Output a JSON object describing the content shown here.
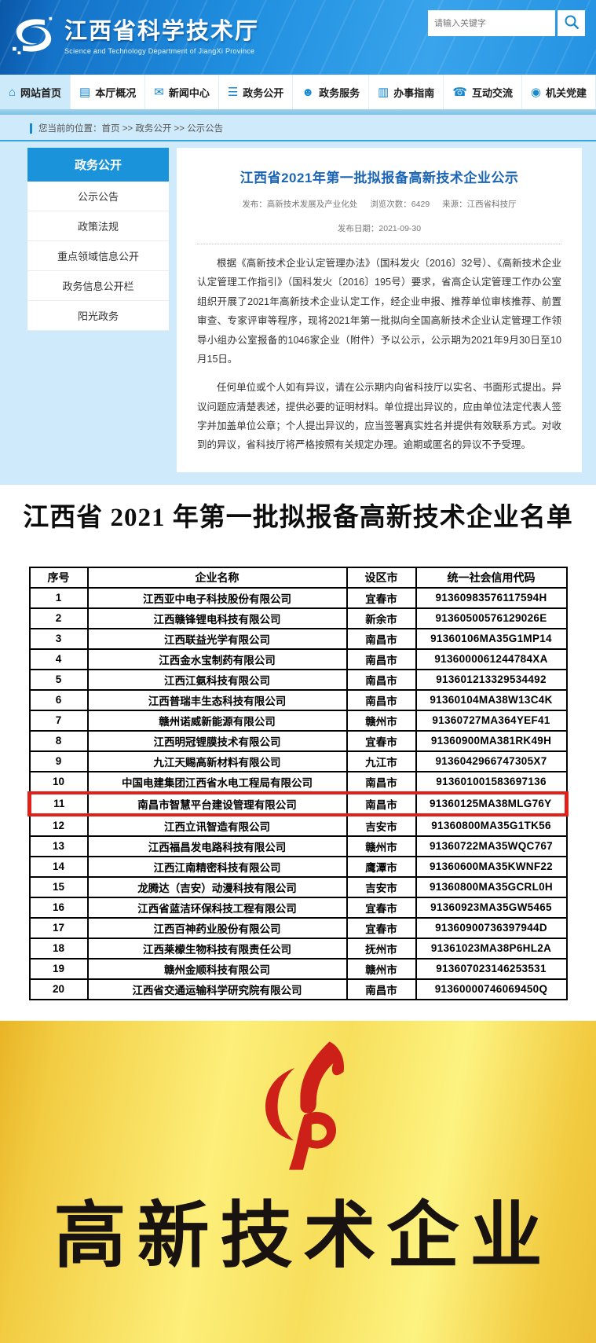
{
  "header": {
    "site_title": "江西省科学技术厅",
    "site_subtitle": "Science and Technology Department of JiangXi Province",
    "search_placeholder": "请输入关键字"
  },
  "nav": {
    "items": [
      {
        "label": "网站首页",
        "icon": "⌂"
      },
      {
        "label": "本厅概况",
        "icon": "▤"
      },
      {
        "label": "新闻中心",
        "icon": "✉"
      },
      {
        "label": "政务公开",
        "icon": "☰"
      },
      {
        "label": "政务服务",
        "icon": "☻"
      },
      {
        "label": "办事指南",
        "icon": "▥"
      },
      {
        "label": "互动交流",
        "icon": "☎"
      },
      {
        "label": "机关党建",
        "icon": "◉"
      }
    ]
  },
  "breadcrumb": {
    "text": "您当前的位置：首页 >> 政务公开 >> 公示公告"
  },
  "sidebar": {
    "title": "政务公开",
    "items": [
      "公示公告",
      "政策法规",
      "重点领域信息公开",
      "政务信息公开栏",
      "阳光政务"
    ]
  },
  "article": {
    "title": "江西省2021年第一批拟报备高新技术企业公示",
    "meta": [
      "发布：高新技术发展及产业化处",
      "浏览次数：6429",
      "来源：江西省科技厅",
      "发布日期：2021-09-30"
    ],
    "paragraphs": [
      "根据《高新技术企业认定管理办法》（国科发火〔2016〕32号）、《高新技术企业认定管理工作指引》（国科发火〔2016〕195号）要求，省高企认定管理工作办公室组织开展了2021年高新技术企业认定工作，经企业申报、推荐单位审核推荐、前置审查、专家评审等程序，现将2021年第一批拟向全国高新技术企业认定管理工作领导小组办公室报备的1046家企业（附件）予以公示，公示期为2021年9月30日至10月15日。",
      "任何单位或个人如有异议，请在公示期内向省科技厅以实名、书面形式提出。异议问题应清楚表述，提供必要的证明材料。单位提出异议的，应由单位法定代表人签字并加盖单位公章；个人提出异议的，应当签署真实姓名并提供有效联系方式。对收到的异议，省科技厅将严格按照有关规定办理。逾期或匿名的异议不予受理。"
    ]
  },
  "list": {
    "title": "江西省 2021 年第一批拟报备高新技术企业名单",
    "table": {
      "headers": [
        "序号",
        "企业名称",
        "设区市",
        "统一社会信用代码"
      ],
      "highlighted_row": "11",
      "rows": [
        [
          "1",
          "江西亚中电子科技股份有限公司",
          "宜春市",
          "91360983576117594H"
        ],
        [
          "2",
          "江西赣锋锂电科技有限公司",
          "新余市",
          "91360500576129026E"
        ],
        [
          "3",
          "江西联益光学有限公司",
          "南昌市",
          "91360106MA35G1MP14"
        ],
        [
          "4",
          "江西金水宝制药有限公司",
          "南昌市",
          "9136000061244784XA"
        ],
        [
          "5",
          "江西江氨科技有限公司",
          "南昌市",
          "913601213329534492"
        ],
        [
          "6",
          "江西普瑞丰生态科技有限公司",
          "南昌市",
          "91360104MA38W13C4K"
        ],
        [
          "7",
          "赣州诺威新能源有限公司",
          "赣州市",
          "91360727MA364YEF41"
        ],
        [
          "8",
          "江西明冠锂膜技术有限公司",
          "宜春市",
          "91360900MA381RK49H"
        ],
        [
          "9",
          "九江天赐高新材料有限公司",
          "九江市",
          "9136042966747305X7"
        ],
        [
          "10",
          "中国电建集团江西省水电工程局有限公司",
          "南昌市",
          "913601001583697136"
        ],
        [
          "11",
          "南昌市智慧平台建设管理有限公司",
          "南昌市",
          "91360125MA38MLG76Y"
        ],
        [
          "12",
          "江西立讯智造有限公司",
          "吉安市",
          "91360800MA35G1TK56"
        ],
        [
          "13",
          "江西福昌发电路科技有限公司",
          "赣州市",
          "91360722MA35WQC767"
        ],
        [
          "14",
          "江西江南精密科技有限公司",
          "鹰潭市",
          "91360600MA35KWNF22"
        ],
        [
          "15",
          "龙腾达（吉安）动漫科技有限公司",
          "吉安市",
          "91360800MA35GCRL0H"
        ],
        [
          "16",
          "江西省蓝洁环保科技工程有限公司",
          "宜春市",
          "91360923MA35GW5465"
        ],
        [
          "17",
          "江西百神药业股份有限公司",
          "宜春市",
          "91360900736397944D"
        ],
        [
          "18",
          "江西莱檬生物科技有限责任公司",
          "抚州市",
          "91361023MA38P6HL2A"
        ],
        [
          "19",
          "赣州金顺科技有限公司",
          "赣州市",
          "913607023146253531"
        ],
        [
          "20",
          "江西省交通运输科学研究院有限公司",
          "南昌市",
          "91360000746069450Q"
        ]
      ]
    }
  },
  "plaque": {
    "text": "高新技术企业"
  },
  "colors": {
    "accent_blue": "#1787d2",
    "header_blue": "#2190e0",
    "light_blue_bg": "#cfeafa",
    "highlight_red": "#e0211a",
    "torch_red": "#cc2018",
    "plaque_gold": "#f7df5c",
    "title_blue": "#1a65b5"
  }
}
